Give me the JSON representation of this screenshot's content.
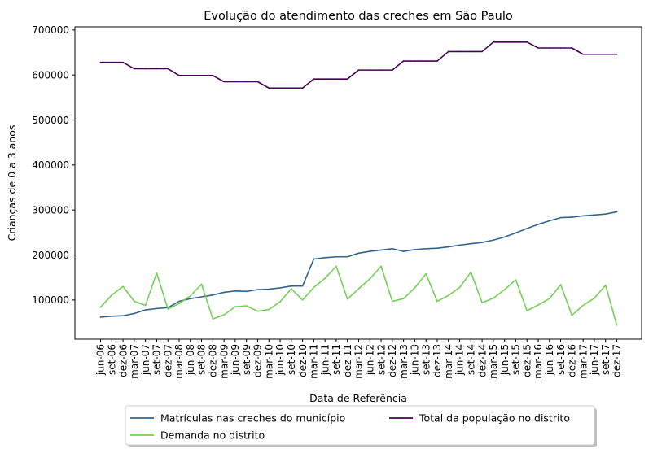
{
  "chart_data": {
    "type": "line",
    "title": "Evolução do atendimento das creches em São Paulo",
    "xlabel": "Data de Referência",
    "ylabel": "Crianças de 0 a 3 anos",
    "ylim": [
      13000,
      707000
    ],
    "yticks": [
      100000,
      200000,
      300000,
      400000,
      500000,
      600000,
      700000
    ],
    "grid": false,
    "legend_position": "bottom-center",
    "categories": [
      "jun-06",
      "set-06",
      "dez-06",
      "mar-07",
      "jun-07",
      "set-07",
      "dez-07",
      "mar-08",
      "jun-08",
      "set-08",
      "dez-08",
      "mar-09",
      "jun-09",
      "set-09",
      "dez-09",
      "mar-10",
      "jun-10",
      "set-10",
      "dez-10",
      "mar-11",
      "jun-11",
      "set-11",
      "dez-11",
      "mar-12",
      "jun-12",
      "set-12",
      "dez-12",
      "mar-13",
      "jun-13",
      "set-13",
      "dez-13",
      "mar-14",
      "jun-14",
      "set-14",
      "dez-14",
      "mar-15",
      "jun-15",
      "set-15",
      "dez-15",
      "mar-16",
      "jun-16",
      "set-16",
      "dez-16",
      "mar-17",
      "jun-17",
      "set-17",
      "dez-17"
    ],
    "series": [
      {
        "name": "Matrículas nas creches do município",
        "color": "#33638d",
        "values": [
          62000,
          64000,
          65000,
          70000,
          78000,
          81000,
          83000,
          97000,
          103000,
          107000,
          111000,
          117000,
          120000,
          119000,
          123000,
          124000,
          127000,
          131000,
          131000,
          191000,
          194000,
          196000,
          196000,
          204000,
          208000,
          211000,
          214000,
          208000,
          212000,
          214000,
          215000,
          218000,
          222000,
          225000,
          228000,
          233000,
          240000,
          249000,
          259000,
          268000,
          276000,
          283000,
          284000,
          287000,
          289000,
          291000,
          296000
        ]
      },
      {
        "name": "Demanda no distrito",
        "color": "#73d055",
        "values": [
          84000,
          111000,
          130000,
          97000,
          88000,
          160000,
          80000,
          92000,
          109000,
          135000,
          58000,
          67000,
          85000,
          87000,
          75000,
          79000,
          96000,
          125000,
          100000,
          128000,
          148000,
          175000,
          102000,
          125000,
          147000,
          175000,
          97000,
          103000,
          127000,
          158000,
          97000,
          110000,
          128000,
          162000,
          94000,
          104000,
          123000,
          145000,
          76000,
          89000,
          103000,
          134000,
          66000,
          88000,
          104000,
          133000,
          44000
        ]
      },
      {
        "name": "Total da população no distrito",
        "color": "#440154",
        "values": [
          628000,
          628000,
          628000,
          614000,
          614000,
          614000,
          614000,
          599000,
          599000,
          599000,
          599000,
          585000,
          585000,
          585000,
          585000,
          571000,
          571000,
          571000,
          571000,
          591000,
          591000,
          591000,
          591000,
          611000,
          611000,
          611000,
          611000,
          631000,
          631000,
          631000,
          631000,
          652000,
          652000,
          652000,
          652000,
          673000,
          673000,
          673000,
          673000,
          660000,
          660000,
          660000,
          660000,
          646000,
          646000,
          646000,
          646000
        ]
      }
    ],
    "legend": [
      {
        "label": "Matrículas nas creches do município",
        "color": "#33638d"
      },
      {
        "label": "Total da população no distrito",
        "color": "#440154"
      },
      {
        "label": "Demanda no distrito",
        "color": "#73d055"
      }
    ]
  }
}
